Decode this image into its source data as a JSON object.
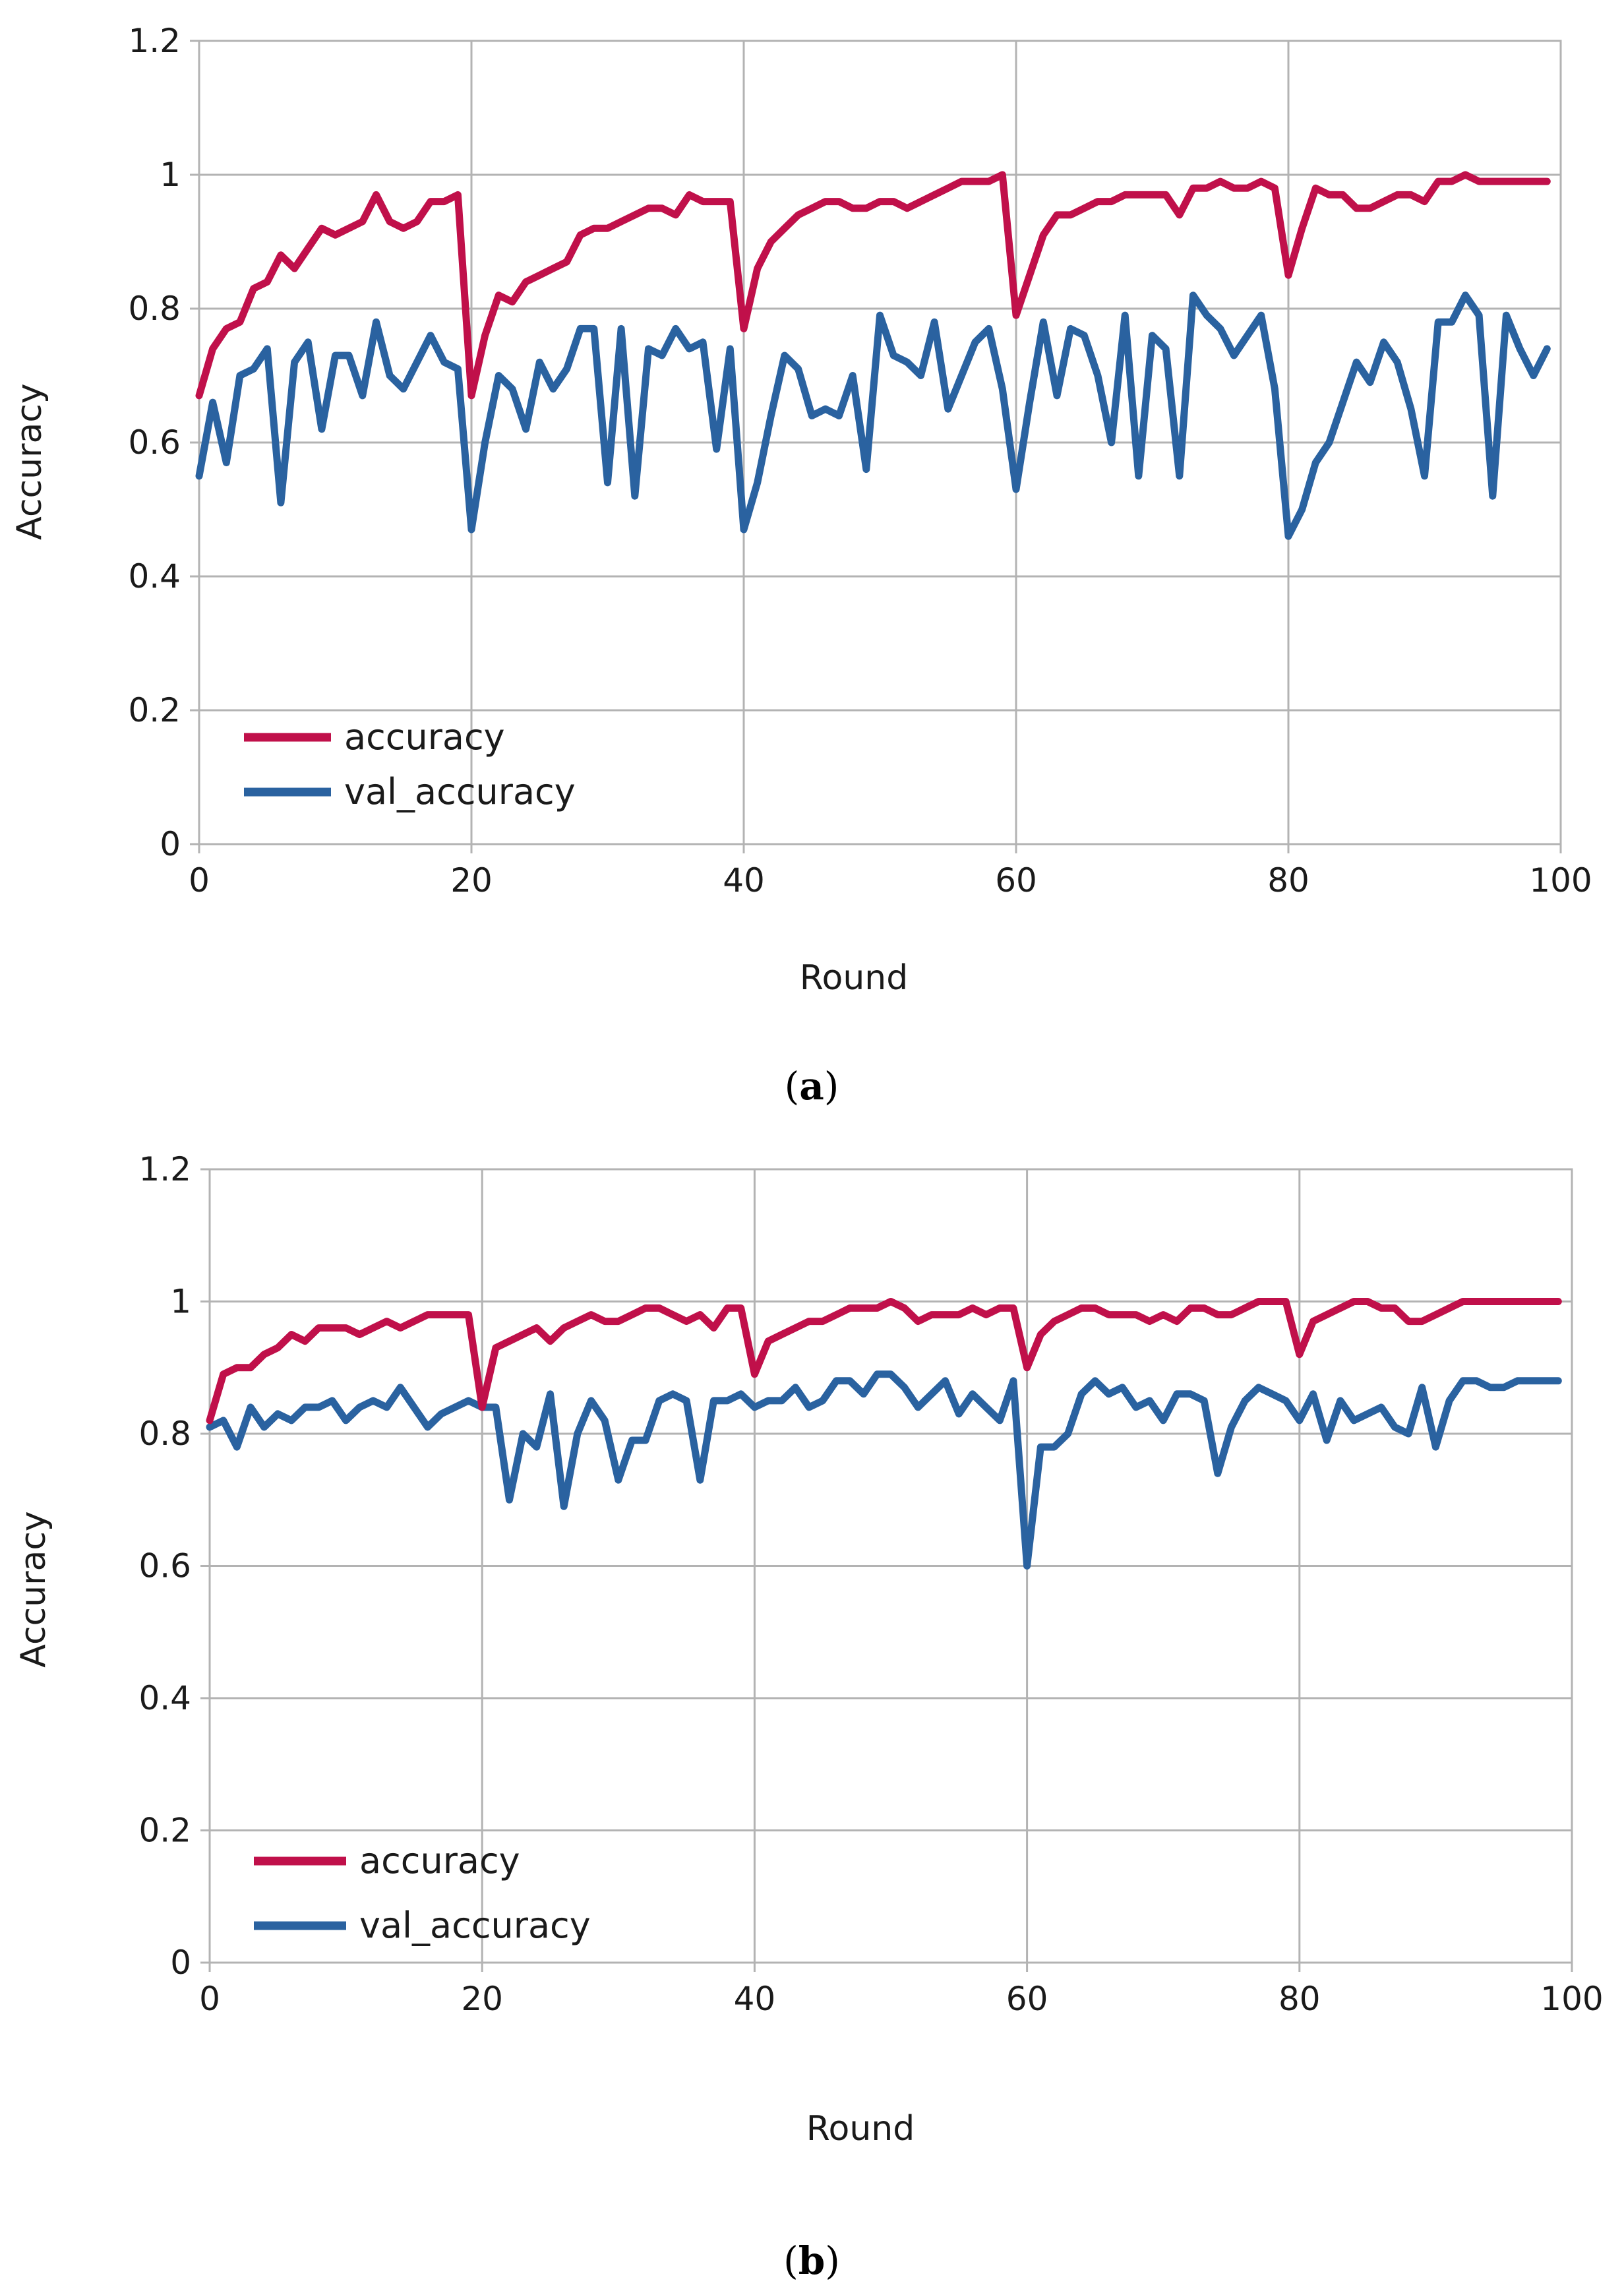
{
  "colors": {
    "accuracy": "#c0104a",
    "val_accuracy": "#2a62a0",
    "grid": "#b3b3b3"
  },
  "chart_data": [
    {
      "type": "line",
      "panel": "a",
      "caption": "(a)",
      "caption_letter": "a",
      "title": "",
      "xlabel": "Round",
      "ylabel": "Accuracy",
      "xlim": [
        0,
        100
      ],
      "ylim": [
        0,
        1.2
      ],
      "xticks": [
        0,
        20,
        40,
        60,
        80,
        100
      ],
      "xtick_labels": [
        "0",
        "20",
        "40",
        "60",
        "80",
        "100"
      ],
      "yticks": [
        0,
        0.2,
        0.4,
        0.6,
        0.8,
        1,
        1.2
      ],
      "ytick_labels": [
        "0",
        "0.2",
        "0.4",
        "0.6",
        "0.8",
        "1",
        "1.2"
      ],
      "grid": "vertical and horizontal",
      "legend": "bottom-left",
      "series": [
        {
          "name": "accuracy",
          "color": "#c0104a",
          "values": [
            0.67,
            0.74,
            0.77,
            0.78,
            0.83,
            0.84,
            0.88,
            0.86,
            0.89,
            0.92,
            0.91,
            0.92,
            0.93,
            0.97,
            0.93,
            0.92,
            0.93,
            0.96,
            0.96,
            0.97,
            0.67,
            0.76,
            0.82,
            0.81,
            0.84,
            0.85,
            0.86,
            0.87,
            0.91,
            0.92,
            0.92,
            0.93,
            0.94,
            0.95,
            0.95,
            0.94,
            0.97,
            0.96,
            0.96,
            0.96,
            0.77,
            0.86,
            0.9,
            0.92,
            0.94,
            0.95,
            0.96,
            0.96,
            0.95,
            0.95,
            0.96,
            0.96,
            0.95,
            0.96,
            0.97,
            0.98,
            0.99,
            0.99,
            0.99,
            1.0,
            0.79,
            0.85,
            0.91,
            0.94,
            0.94,
            0.95,
            0.96,
            0.96,
            0.97,
            0.97,
            0.97,
            0.97,
            0.94,
            0.98,
            0.98,
            0.99,
            0.98,
            0.98,
            0.99,
            0.98,
            0.85,
            0.92,
            0.98,
            0.97,
            0.97,
            0.95,
            0.95,
            0.96,
            0.97,
            0.97,
            0.96,
            0.99,
            0.99,
            1.0,
            0.99,
            0.99,
            0.99,
            0.99,
            0.99,
            0.99
          ]
        },
        {
          "name": "val_accuracy",
          "color": "#2a62a0",
          "values": [
            0.55,
            0.66,
            0.57,
            0.7,
            0.71,
            0.74,
            0.51,
            0.72,
            0.75,
            0.62,
            0.73,
            0.73,
            0.67,
            0.78,
            0.7,
            0.68,
            0.72,
            0.76,
            0.72,
            0.71,
            0.47,
            0.6,
            0.7,
            0.68,
            0.62,
            0.72,
            0.68,
            0.71,
            0.77,
            0.77,
            0.54,
            0.77,
            0.52,
            0.74,
            0.73,
            0.77,
            0.74,
            0.75,
            0.59,
            0.74,
            0.47,
            0.54,
            0.64,
            0.73,
            0.71,
            0.64,
            0.65,
            0.64,
            0.7,
            0.56,
            0.79,
            0.73,
            0.72,
            0.7,
            0.78,
            0.65,
            0.7,
            0.75,
            0.77,
            0.68,
            0.53,
            0.66,
            0.78,
            0.67,
            0.77,
            0.76,
            0.7,
            0.6,
            0.79,
            0.55,
            0.76,
            0.74,
            0.55,
            0.82,
            0.79,
            0.77,
            0.73,
            0.76,
            0.79,
            0.68,
            0.46,
            0.5,
            0.57,
            0.6,
            0.66,
            0.72,
            0.69,
            0.75,
            0.72,
            0.65,
            0.55,
            0.78,
            0.78,
            0.82,
            0.79,
            0.52,
            0.79,
            0.74,
            0.7,
            0.74
          ]
        }
      ]
    },
    {
      "type": "line",
      "panel": "b",
      "caption": "(b)",
      "caption_letter": "b",
      "title": "",
      "xlabel": "Round",
      "ylabel": "Accuracy",
      "xlim": [
        0,
        100
      ],
      "ylim": [
        0,
        1.2
      ],
      "xticks": [
        0,
        20,
        40,
        60,
        80,
        100
      ],
      "xtick_labels": [
        "0",
        "20",
        "40",
        "60",
        "80",
        "100"
      ],
      "yticks": [
        0,
        0.2,
        0.4,
        0.6,
        0.8,
        1,
        1.2
      ],
      "ytick_labels": [
        "0",
        "0.2",
        "0.4",
        "0.6",
        "0.8",
        "1",
        "1.2"
      ],
      "grid": "vertical and horizontal",
      "legend": "bottom-left",
      "series": [
        {
          "name": "accuracy",
          "color": "#c0104a",
          "values": [
            0.82,
            0.89,
            0.9,
            0.9,
            0.92,
            0.93,
            0.95,
            0.94,
            0.96,
            0.96,
            0.96,
            0.95,
            0.96,
            0.97,
            0.96,
            0.97,
            0.98,
            0.98,
            0.98,
            0.98,
            0.84,
            0.93,
            0.94,
            0.95,
            0.96,
            0.94,
            0.96,
            0.97,
            0.98,
            0.97,
            0.97,
            0.98,
            0.99,
            0.99,
            0.98,
            0.97,
            0.98,
            0.96,
            0.99,
            0.99,
            0.89,
            0.94,
            0.95,
            0.96,
            0.97,
            0.97,
            0.98,
            0.99,
            0.99,
            0.99,
            1.0,
            0.99,
            0.97,
            0.98,
            0.98,
            0.98,
            0.99,
            0.98,
            0.99,
            0.99,
            0.9,
            0.95,
            0.97,
            0.98,
            0.99,
            0.99,
            0.98,
            0.98,
            0.98,
            0.97,
            0.98,
            0.97,
            0.99,
            0.99,
            0.98,
            0.98,
            0.99,
            1.0,
            1.0,
            1.0,
            0.92,
            0.97,
            0.98,
            0.99,
            1.0,
            1.0,
            0.99,
            0.99,
            0.97,
            0.97,
            0.98,
            0.99,
            1.0,
            1.0,
            1.0,
            1.0,
            1.0,
            1.0,
            1.0,
            1.0
          ]
        },
        {
          "name": "val_accuracy",
          "color": "#2a62a0",
          "values": [
            0.81,
            0.82,
            0.78,
            0.84,
            0.81,
            0.83,
            0.82,
            0.84,
            0.84,
            0.85,
            0.82,
            0.84,
            0.85,
            0.84,
            0.87,
            0.84,
            0.81,
            0.83,
            0.84,
            0.85,
            0.84,
            0.84,
            0.7,
            0.8,
            0.78,
            0.86,
            0.69,
            0.8,
            0.85,
            0.82,
            0.73,
            0.79,
            0.79,
            0.85,
            0.86,
            0.85,
            0.73,
            0.85,
            0.85,
            0.86,
            0.84,
            0.85,
            0.85,
            0.87,
            0.84,
            0.85,
            0.88,
            0.88,
            0.86,
            0.89,
            0.89,
            0.87,
            0.84,
            0.86,
            0.88,
            0.83,
            0.86,
            0.84,
            0.82,
            0.88,
            0.6,
            0.78,
            0.78,
            0.8,
            0.86,
            0.88,
            0.86,
            0.87,
            0.84,
            0.85,
            0.82,
            0.86,
            0.86,
            0.85,
            0.74,
            0.81,
            0.85,
            0.87,
            0.86,
            0.85,
            0.82,
            0.86,
            0.79,
            0.85,
            0.82,
            0.83,
            0.84,
            0.81,
            0.8,
            0.87,
            0.78,
            0.85,
            0.88,
            0.88,
            0.87,
            0.87,
            0.88,
            0.88,
            0.88,
            0.88
          ]
        }
      ]
    }
  ]
}
